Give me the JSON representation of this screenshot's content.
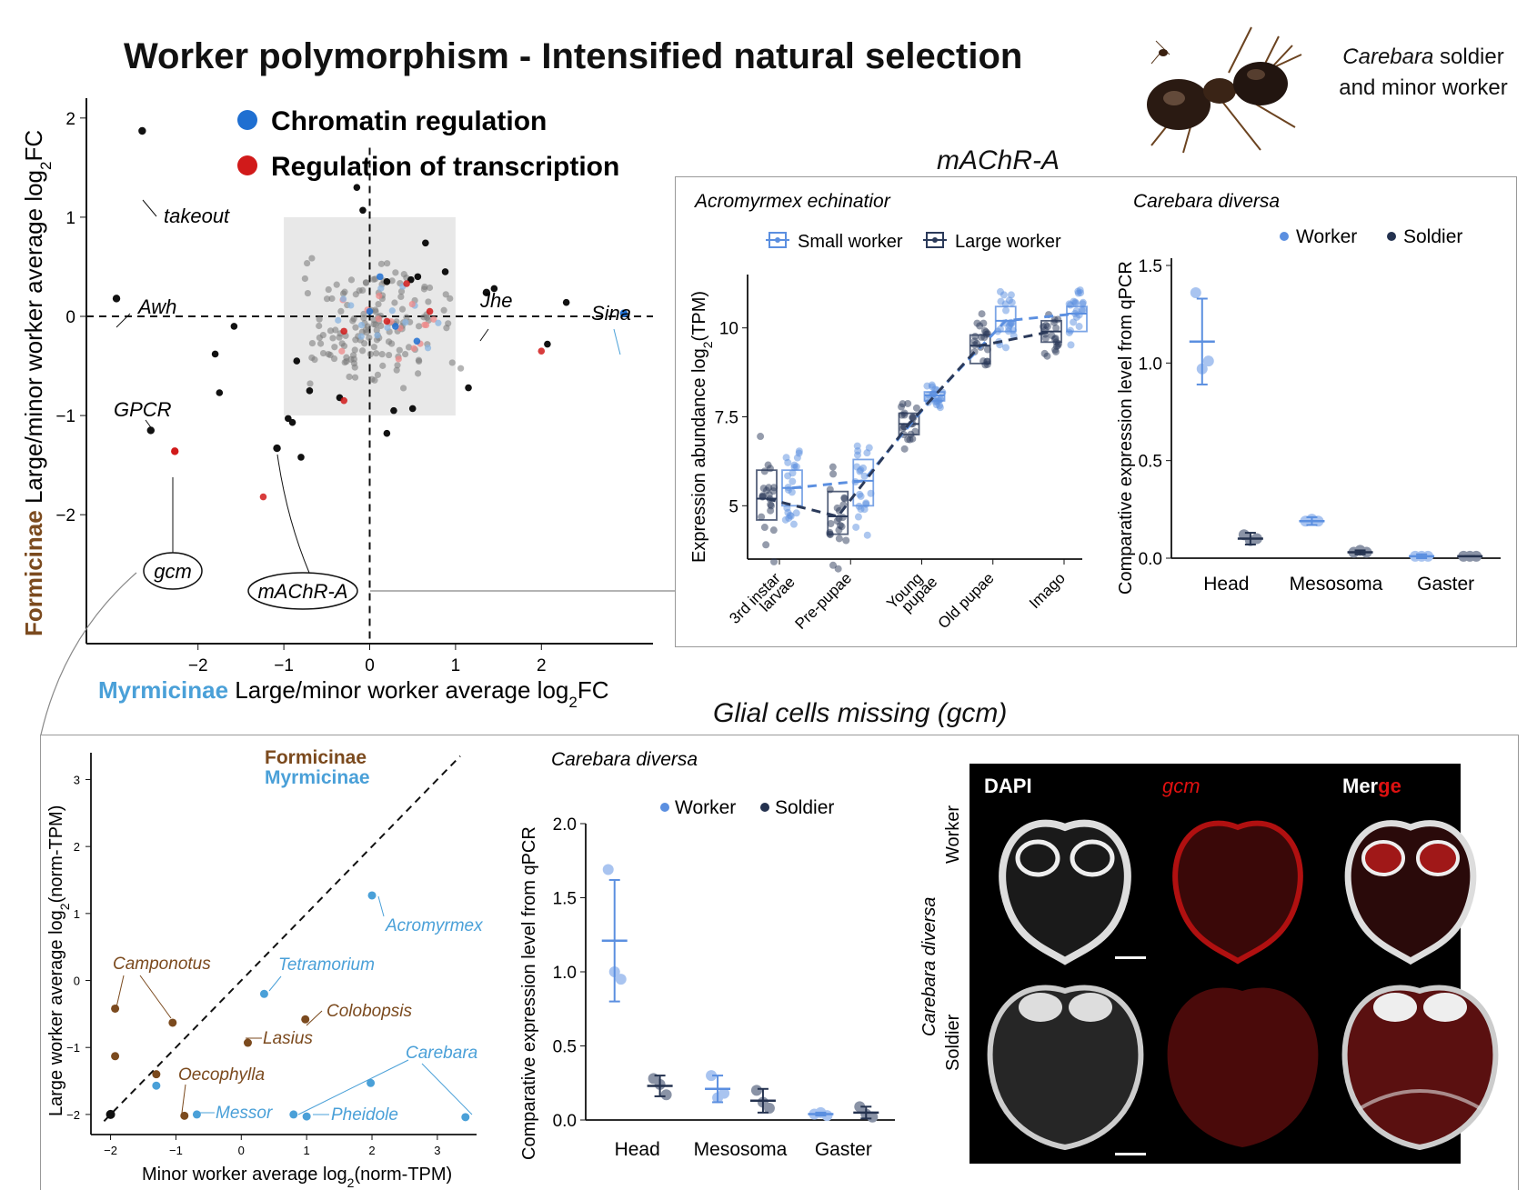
{
  "title": "Worker polymorphism - Intensified natural selection",
  "ant_caption": {
    "genus": "Carebara",
    "line1_rest": " soldier",
    "line2": "and minor worker"
  },
  "colors": {
    "chromatin": "#1f6fd1",
    "transcription": "#d11a1a",
    "formicinae": "#7b4a1e",
    "myrmicinae": "#4aa0d8",
    "worker": "#5b8fe0",
    "soldier": "#24324f",
    "small_worker": "#5b8fe0",
    "large_worker": "#2b3a5a"
  },
  "main_scatter": {
    "legend": [
      {
        "label": "Chromatin regulation",
        "color": "#1f6fd1"
      },
      {
        "label": "Regulation of transcription",
        "color": "#d11a1a"
      }
    ],
    "ylabel_prefix": "Formicinae",
    "ylabel_rest": " Large/minor worker average log",
    "ylabel_sub": "2",
    "ylabel_end": "FC",
    "xlabel_prefix": "Myrmicinae",
    "xlabel_rest": " Large/minor worker average log",
    "xlabel_sub": "2",
    "xlabel_end": "FC",
    "xticks": [
      "−2",
      "−1",
      "0",
      "1",
      "2"
    ],
    "yticks": [
      "2",
      "1",
      "0",
      "−1",
      "−2"
    ],
    "gene_labels": [
      "takeout",
      "Awh",
      "Jhe",
      "Sina",
      "GPCR"
    ],
    "circled_labels": [
      "gcm",
      "mAChR-A"
    ]
  },
  "machr": {
    "title": "mAChR-A",
    "acromyrmex": {
      "subtitle": "Acromyrmex echinatior",
      "legend": [
        "Small worker",
        "Large worker"
      ],
      "ylabel": "Expression abundance log",
      "ylabel_sub": "2",
      "ylabel_end": "(TPM)",
      "yticks": [
        "10",
        "7.5",
        "5"
      ],
      "stages": [
        "3rd instar larvae",
        "Pre-pupae",
        "Young pupae",
        "Old pupae",
        "Imago"
      ]
    },
    "carebara": {
      "subtitle": "Carebara diversa",
      "legend": [
        "Worker",
        "Soldier"
      ],
      "ylabel": "Comparative expression level from qPCR",
      "yticks": [
        "1.5",
        "1.0",
        "0.5",
        "0.0"
      ],
      "categories": [
        "Head",
        "Mesosoma",
        "Gaster"
      ]
    }
  },
  "gcm": {
    "title": "Glial cells missing (gcm)",
    "scatter": {
      "legend": [
        "Formicinae",
        "Myrmicinae"
      ],
      "ylabel": "Large worker average log",
      "ylabel_sub": "2",
      "ylabel_end": "(norm-TPM)",
      "xlabel": "Minor worker average log",
      "xlabel_sub": "2",
      "xlabel_end": "(norm-TPM)",
      "xticks": [
        "−2",
        "−1",
        "0",
        "1",
        "2",
        "3"
      ],
      "yticks": [
        "3",
        "2",
        "1",
        "0",
        "−1",
        "−2"
      ],
      "species": [
        "Acromyrmex",
        "Tetramorium",
        "Camponotus",
        "Colobopsis",
        "Lasius",
        "Carebara",
        "Oecophylla",
        "Messor",
        "Pheidole"
      ]
    },
    "qpcr": {
      "subtitle": "Carebara diversa",
      "legend": [
        "Worker",
        "Soldier"
      ],
      "ylabel": "Comparative expression level from qPCR",
      "yticks": [
        "2.0",
        "1.5",
        "1.0",
        "0.5",
        "0.0"
      ],
      "categories": [
        "Head",
        "Mesosoma",
        "Gaster"
      ]
    },
    "micro": {
      "cols": [
        "DAPI",
        "gcm",
        "Mer",
        "ge"
      ],
      "species": "Carebara diversa",
      "rows": [
        "Worker",
        "Soldier"
      ]
    }
  },
  "chart_data": [
    {
      "type": "scatter",
      "title": "",
      "xlabel": "Myrmicinae Large/minor worker average log2FC",
      "ylabel": "Formicinae Large/minor worker average log2FC",
      "xlim": [
        -3.3,
        3.3
      ],
      "ylim": [
        -3.3,
        2.2
      ],
      "grid": false,
      "highlight_region": {
        "x": [
          -1,
          1
        ],
        "y": [
          -1,
          1
        ]
      },
      "labeled_points": [
        {
          "label": "takeout",
          "x": -2.65,
          "y": 1.87
        },
        {
          "label": "Awh",
          "x": -2.95,
          "y": 0.18
        },
        {
          "label": "GPCR",
          "x": -2.55,
          "y": -1.15
        },
        {
          "label": "gcm",
          "x": -2.27,
          "y": -1.36,
          "category": "Regulation of transcription"
        },
        {
          "label": "mAChR-A",
          "x": -1.08,
          "y": -1.33
        },
        {
          "label": "Jhe",
          "x": 1.36,
          "y": 0.24
        },
        {
          "label": "Sina",
          "x": 2.96,
          "y": 0.03,
          "category": "Chromatin regulation"
        }
      ],
      "series": [
        {
          "name": "other",
          "points": [
            [
              -1.8,
              -0.38
            ],
            [
              -1.75,
              -0.77
            ],
            [
              -1.58,
              -0.1
            ],
            [
              -0.95,
              -1.03
            ],
            [
              -0.9,
              -1.07
            ],
            [
              -0.85,
              -0.45
            ],
            [
              -0.8,
              -1.42
            ],
            [
              -0.7,
              -0.75
            ],
            [
              -0.35,
              -0.82
            ],
            [
              0.2,
              -1.18
            ],
            [
              0.28,
              -0.95
            ],
            [
              0.5,
              -0.93
            ],
            [
              1.15,
              -0.72
            ],
            [
              1.45,
              0.28
            ],
            [
              2.07,
              -0.28
            ],
            [
              2.29,
              0.14
            ],
            [
              -0.15,
              1.3
            ],
            [
              -0.08,
              1.07
            ],
            [
              0.65,
              0.74
            ],
            [
              0.88,
              0.45
            ],
            [
              0.48,
              0.37
            ],
            [
              0.56,
              0.4
            ],
            [
              0.2,
              0.35
            ]
          ]
        },
        {
          "name": "Regulation of transcription",
          "points": [
            [
              0.43,
              0.33
            ],
            [
              0.7,
              0.05
            ],
            [
              -0.3,
              -0.15
            ],
            [
              0.2,
              -0.05
            ],
            [
              -1.24,
              -1.82
            ],
            [
              2.0,
              -0.35
            ],
            [
              -0.3,
              -0.85
            ]
          ]
        },
        {
          "name": "Chromatin regulation",
          "points": [
            [
              0.12,
              0.4
            ],
            [
              0.0,
              0.05
            ],
            [
              0.3,
              -0.1
            ],
            [
              0.55,
              -0.25
            ]
          ]
        }
      ]
    },
    {
      "type": "box",
      "title": "mAChR-A",
      "subtitle": "Acromyrmex echinatior",
      "ylabel": "Expression abundance log2(TPM)",
      "ylim": [
        3.5,
        11.5
      ],
      "categories": [
        "3rd instar larvae",
        "Pre-pupae",
        "Young pupae",
        "Old pupae",
        "Imago"
      ],
      "series": [
        {
          "name": "Small worker",
          "medians": [
            5.5,
            5.7,
            8.1,
            10.2,
            10.4
          ],
          "q1": [
            5.0,
            5.0,
            7.95,
            9.9,
            9.9
          ],
          "q3": [
            6.0,
            6.3,
            8.2,
            10.6,
            10.6
          ]
        },
        {
          "name": "Large worker",
          "medians": [
            5.2,
            4.7,
            7.3,
            9.5,
            9.9
          ],
          "q1": [
            4.6,
            4.2,
            7.0,
            9.0,
            9.6
          ],
          "q3": [
            6.0,
            5.4,
            7.6,
            9.8,
            10.2
          ]
        }
      ]
    },
    {
      "type": "scatter",
      "title": "",
      "subtitle": "Carebara diversa",
      "ylabel": "Comparative expression level from qPCR",
      "ylim": [
        0,
        1.5
      ],
      "categories": [
        "Head",
        "Mesosoma",
        "Gaster"
      ],
      "series": [
        {
          "name": "Worker",
          "mean": [
            1.11,
            0.19,
            0.01
          ],
          "sd": [
            0.22,
            0.02,
            0.01
          ],
          "points": [
            [
              1.36,
              0.97,
              1.01
            ],
            [
              0.19,
              0.2,
              0.19
            ],
            [
              0.01,
              0.01,
              0.01
            ]
          ]
        },
        {
          "name": "Soldier",
          "mean": [
            0.1,
            0.03,
            0.01
          ],
          "sd": [
            0.03,
            0.01,
            0.0
          ],
          "points": [
            [
              0.12,
              0.09,
              0.1
            ],
            [
              0.03,
              0.04,
              0.03
            ],
            [
              0.01,
              0.01,
              0.01
            ]
          ]
        }
      ]
    },
    {
      "type": "scatter",
      "title": "",
      "xlabel": "Minor worker average log2(norm-TPM)",
      "ylabel": "Large worker average log2(norm-TPM)",
      "xlim": [
        -2.3,
        3.6
      ],
      "ylim": [
        -2.3,
        3.4
      ],
      "series": [
        {
          "name": "Formicinae",
          "points": [
            {
              "label": "Camponotus",
              "x": -1.93,
              "y": -0.42
            },
            {
              "label": "Camponotus",
              "x": -1.05,
              "y": -0.63
            },
            {
              "label": "Colobopsis",
              "x": 0.98,
              "y": -0.58
            },
            {
              "label": "Lasius",
              "x": 0.1,
              "y": -0.93
            },
            {
              "label": "Oecophylla",
              "x": -0.87,
              "y": -2.02
            },
            {
              "label": "",
              "x": -1.93,
              "y": -1.13
            },
            {
              "label": "",
              "x": -1.3,
              "y": -1.4
            }
          ]
        },
        {
          "name": "Myrmicinae",
          "points": [
            {
              "label": "Acromyrmex",
              "x": 2.0,
              "y": 1.27
            },
            {
              "label": "Tetramorium",
              "x": 0.35,
              "y": -0.2
            },
            {
              "label": "Carebara",
              "x": 1.98,
              "y": -1.53
            },
            {
              "label": "Carebara",
              "x": 3.43,
              "y": -2.04
            },
            {
              "label": "Messor",
              "x": -1.3,
              "y": -1.57
            },
            {
              "label": "Messor",
              "x": -0.68,
              "y": -2.0
            },
            {
              "label": "Pheidole",
              "x": 0.8,
              "y": -2.0
            },
            {
              "label": "Pheidole",
              "x": 1.0,
              "y": -2.03
            }
          ]
        }
      ]
    },
    {
      "type": "scatter",
      "title": "",
      "subtitle": "Carebara diversa",
      "ylabel": "Comparative expression level from qPCR",
      "ylim": [
        0,
        2.0
      ],
      "categories": [
        "Head",
        "Mesosoma",
        "Gaster"
      ],
      "series": [
        {
          "name": "Worker",
          "mean": [
            1.21,
            0.21,
            0.04
          ],
          "sd": [
            0.41,
            0.09,
            0.01
          ],
          "points": [
            [
              1.69,
              1.0,
              0.95
            ],
            [
              0.3,
              0.15,
              0.18
            ],
            [
              0.04,
              0.05,
              0.03
            ]
          ]
        },
        {
          "name": "Soldier",
          "mean": [
            0.23,
            0.13,
            0.05
          ],
          "sd": [
            0.07,
            0.08,
            0.04
          ],
          "points": [
            [
              0.28,
              0.24,
              0.17
            ],
            [
              0.2,
              0.12,
              0.08
            ],
            [
              0.09,
              0.04,
              0.02
            ]
          ]
        }
      ]
    }
  ]
}
